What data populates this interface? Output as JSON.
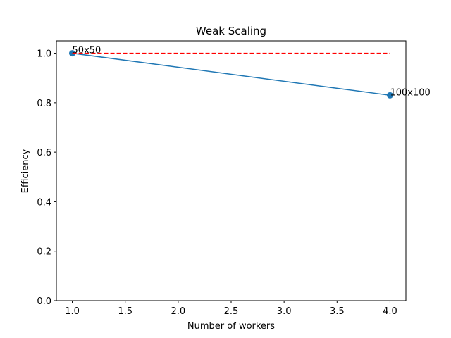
{
  "chart_data": {
    "type": "line",
    "title": "Weak Scaling",
    "xlabel": "Number of workers",
    "ylabel": "Efficiency",
    "xlim": [
      0.85,
      4.15
    ],
    "ylim": [
      0.0,
      1.05
    ],
    "xticks": [
      1.0,
      1.5,
      2.0,
      2.5,
      3.0,
      3.5,
      4.0
    ],
    "xtick_labels": [
      "1.0",
      "1.5",
      "2.0",
      "2.5",
      "3.0",
      "3.5",
      "4.0"
    ],
    "yticks": [
      0.0,
      0.2,
      0.4,
      0.6,
      0.8,
      1.0
    ],
    "ytick_labels": [
      "0.0",
      "0.2",
      "0.4",
      "0.6",
      "0.8",
      "1.0"
    ],
    "grid": false,
    "series": [
      {
        "x": [
          1,
          4
        ],
        "y": [
          1.0,
          0.83
        ],
        "color": "#1f77b4",
        "style": "solid",
        "markers": true,
        "point_labels": [
          "50x50",
          "100x100"
        ]
      },
      {
        "x": [
          1,
          4
        ],
        "y": [
          1.0,
          1.0
        ],
        "color": "#ff0000",
        "style": "dashed",
        "markers": false
      }
    ]
  }
}
